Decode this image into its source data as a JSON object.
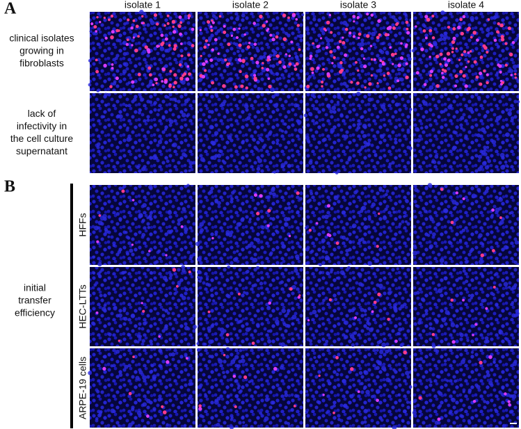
{
  "panels": [
    {
      "label": "A",
      "columns": [
        "isolate 1",
        "isolate 2",
        "isolate 3",
        "isolate 4"
      ],
      "rows": [
        {
          "label_lines": [
            "clinical isolates",
            "growing in",
            "fibroblasts"
          ]
        },
        {
          "label_lines": [
            "lack of",
            "infectivity in",
            "the cell culture",
            "supernatant"
          ]
        }
      ]
    },
    {
      "label": "B",
      "side_label_lines": [
        "initial",
        "transfer",
        "efficiency"
      ],
      "rows": [
        {
          "label": "HFFs"
        },
        {
          "label": "HEC-LTTs"
        },
        {
          "label": "ARPE-19 cells"
        }
      ]
    }
  ]
}
